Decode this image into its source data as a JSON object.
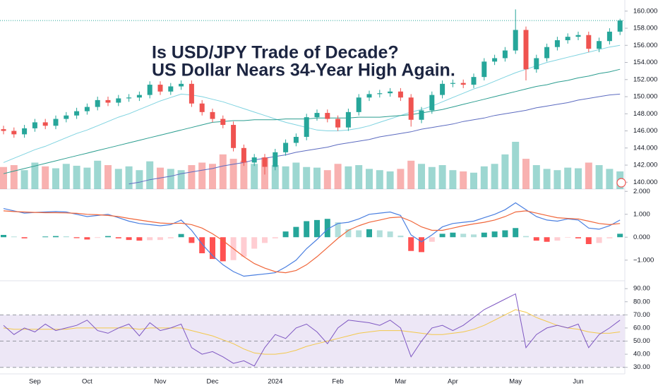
{
  "chart_data": [
    {
      "type": "candlestick",
      "annotations": [
        "Is USD/JPY Trade of Decade?",
        "US Dollar Nears 34-Year High Again."
      ],
      "categories": [
        null,
        null,
        null,
        "Sep",
        null,
        null,
        null,
        null,
        "Oct",
        null,
        null,
        null,
        null,
        null,
        null,
        "Nov",
        null,
        null,
        null,
        null,
        "Dec",
        null,
        null,
        null,
        null,
        null,
        "2024",
        null,
        null,
        null,
        null,
        null,
        "Feb",
        null,
        null,
        null,
        null,
        null,
        "Mar",
        null,
        null,
        null,
        null,
        "Apr",
        null,
        null,
        null,
        null,
        null,
        "May",
        null,
        null,
        null,
        null,
        null,
        "Jun",
        null,
        null,
        null,
        null
      ],
      "open": [
        146.2,
        146.0,
        145.6,
        146.3,
        147.0,
        146.6,
        147.4,
        147.8,
        148.3,
        148.8,
        149.6,
        149.3,
        149.8,
        149.9,
        150.2,
        151.4,
        150.6,
        151.2,
        151.5,
        149.2,
        148.2,
        147.4,
        146.7,
        144.0,
        142.3,
        142.9,
        141.8,
        143.5,
        144.6,
        145.3,
        147.6,
        148.1,
        147.4,
        146.4,
        148.2,
        149.9,
        150.3,
        150.4,
        150.6,
        149.9,
        147.3,
        148.4,
        150.2,
        151.5,
        151.6,
        151.4,
        152.3,
        154.1,
        154.5,
        155.4,
        157.8,
        153.2,
        154.5,
        155.8,
        156.6,
        157.0,
        157.2,
        155.6,
        156.5,
        157.6
      ],
      "high": [
        146.6,
        146.4,
        146.7,
        147.4,
        147.4,
        147.8,
        148.2,
        148.7,
        149.2,
        150.0,
        150.0,
        150.2,
        150.3,
        150.6,
        151.8,
        151.8,
        151.6,
        151.9,
        151.9,
        149.6,
        148.6,
        147.8,
        147.1,
        144.4,
        143.3,
        143.3,
        143.9,
        145.0,
        145.7,
        148.0,
        148.5,
        148.5,
        147.8,
        148.6,
        150.3,
        150.7,
        150.8,
        151.0,
        151.0,
        150.3,
        148.8,
        150.6,
        151.9,
        152.0,
        152.0,
        152.7,
        154.5,
        154.9,
        155.8,
        160.2,
        158.2,
        154.9,
        156.2,
        157.0,
        157.4,
        157.6,
        157.6,
        156.9,
        158.0,
        159.1
      ],
      "low": [
        145.6,
        145.2,
        145.2,
        145.9,
        146.2,
        146.2,
        147.0,
        147.4,
        147.9,
        148.4,
        148.9,
        148.9,
        149.4,
        149.5,
        149.8,
        150.2,
        150.2,
        150.8,
        148.8,
        147.8,
        147.0,
        146.3,
        143.6,
        141.9,
        141.9,
        140.9,
        141.4,
        143.1,
        144.2,
        144.9,
        147.2,
        147.0,
        146.0,
        146.0,
        147.8,
        149.5,
        149.9,
        150.0,
        149.5,
        146.5,
        146.9,
        148.0,
        149.8,
        151.1,
        151.0,
        151.0,
        151.9,
        153.7,
        154.1,
        155.0,
        151.9,
        152.8,
        154.1,
        155.4,
        156.2,
        156.6,
        155.2,
        155.2,
        156.1,
        157.2
      ],
      "close": [
        146.0,
        145.6,
        146.3,
        147.0,
        146.6,
        147.4,
        147.8,
        148.3,
        148.8,
        149.6,
        149.3,
        149.8,
        149.9,
        150.2,
        151.4,
        150.6,
        151.2,
        151.5,
        149.2,
        148.2,
        147.4,
        146.7,
        144.0,
        142.3,
        142.9,
        141.8,
        143.5,
        144.6,
        145.3,
        147.6,
        148.1,
        147.4,
        146.4,
        148.2,
        149.9,
        150.3,
        150.4,
        150.6,
        149.9,
        147.3,
        148.4,
        150.2,
        151.5,
        151.6,
        151.4,
        152.3,
        154.1,
        154.5,
        155.4,
        157.8,
        153.2,
        154.5,
        155.8,
        156.6,
        157.0,
        157.2,
        155.6,
        156.5,
        157.6,
        158.9
      ],
      "volume": [
        35,
        38,
        30,
        42,
        36,
        33,
        40,
        37,
        34,
        45,
        38,
        32,
        36,
        30,
        44,
        34,
        32,
        30,
        38,
        42,
        40,
        55,
        48,
        45,
        40,
        50,
        38,
        36,
        42,
        35,
        34,
        30,
        40,
        36,
        38,
        32,
        30,
        28,
        32,
        45,
        40,
        35,
        38,
        30,
        28,
        26,
        36,
        40,
        55,
        75,
        48,
        38,
        32,
        30,
        34,
        33,
        42,
        38,
        32,
        28
      ],
      "volume_lim": [
        0,
        300
      ],
      "up_color": "#26a69a",
      "down_color": "#ef5350",
      "moving_averages": [
        {
          "color": "#7fd3e0",
          "values": [
            142.3,
            142.8,
            143.3,
            143.8,
            144.2,
            144.7,
            145.2,
            145.7,
            146.1,
            146.6,
            147.1,
            147.6,
            148.0,
            148.5,
            149.0,
            149.5,
            149.9,
            150.3,
            150.2,
            150.0,
            149.7,
            149.4,
            149.0,
            148.6,
            148.2,
            147.8,
            147.4,
            147.0,
            146.7,
            146.4,
            146.1,
            146.0,
            146.0,
            146.1,
            146.3,
            146.6,
            147.0,
            147.4,
            147.8,
            148.2,
            148.5,
            148.9,
            149.4,
            149.9,
            150.4,
            150.9,
            151.3,
            151.8,
            152.3,
            152.8,
            153.2,
            153.6,
            154.0,
            154.3,
            154.6,
            154.9,
            155.2,
            155.5,
            155.8,
            156.0
          ]
        },
        {
          "color": "#2a9d8f",
          "values": [
            141.0,
            141.3,
            141.6,
            141.9,
            142.2,
            142.5,
            142.8,
            143.1,
            143.4,
            143.7,
            144.0,
            144.3,
            144.6,
            144.9,
            145.2,
            145.5,
            145.8,
            146.1,
            146.4,
            146.7,
            147.0,
            147.1,
            147.2,
            147.2,
            147.3,
            147.3,
            147.3,
            147.4,
            147.4,
            147.4,
            147.5,
            147.5,
            147.5,
            147.5,
            147.6,
            147.6,
            147.6,
            147.7,
            147.8,
            147.9,
            148.1,
            148.3,
            148.5,
            148.8,
            149.1,
            149.4,
            149.7,
            150.0,
            150.3,
            150.6,
            150.9,
            151.2,
            151.4,
            151.7,
            151.9,
            152.2,
            152.4,
            152.7,
            152.9,
            153.2
          ]
        },
        {
          "color": "#5c6bc0",
          "values": [
            null,
            null,
            null,
            null,
            null,
            null,
            null,
            null,
            null,
            null,
            null,
            null,
            139.8,
            140.0,
            140.3,
            140.5,
            140.7,
            141.0,
            141.2,
            141.4,
            141.6,
            141.9,
            142.1,
            142.3,
            142.6,
            142.8,
            143.0,
            143.2,
            143.5,
            143.7,
            143.9,
            144.1,
            144.4,
            144.6,
            144.8,
            145.0,
            145.3,
            145.5,
            145.7,
            145.9,
            146.2,
            146.4,
            146.6,
            146.8,
            147.1,
            147.3,
            147.5,
            147.8,
            148.0,
            148.2,
            148.4,
            148.7,
            148.9,
            149.1,
            149.3,
            149.6,
            149.8,
            150.0,
            150.2,
            150.3
          ]
        }
      ],
      "ylim": [
        139.2,
        161.3
      ],
      "yticks": [
        {
          "value": 140,
          "label": "140.000"
        },
        {
          "value": 142,
          "label": "142.000"
        },
        {
          "value": 144,
          "label": "144.000"
        },
        {
          "value": 146,
          "label": "146.000"
        },
        {
          "value": 148,
          "label": "148.000"
        },
        {
          "value": 150,
          "label": "150.000"
        },
        {
          "value": 152,
          "label": "152.000"
        },
        {
          "value": 154,
          "label": "154.000"
        },
        {
          "value": 156,
          "label": "156.000"
        },
        {
          "value": 158,
          "label": "158.000"
        },
        {
          "value": 160,
          "label": "160.000"
        }
      ],
      "grid": false
    },
    {
      "type": "macd",
      "macd": {
        "color": "#4a7fe0",
        "values": [
          1.25,
          1.15,
          1.05,
          1.08,
          1.1,
          1.12,
          1.1,
          1.0,
          0.9,
          0.95,
          1.0,
          0.85,
          0.7,
          0.6,
          0.55,
          0.5,
          0.55,
          0.75,
          0.3,
          -0.3,
          -0.8,
          -1.2,
          -1.5,
          -1.7,
          -1.65,
          -1.6,
          -1.55,
          -1.3,
          -1.0,
          -0.5,
          -0.1,
          0.35,
          0.6,
          0.65,
          0.8,
          1.0,
          1.05,
          1.1,
          0.95,
          0.1,
          -0.2,
          0.1,
          0.45,
          0.6,
          0.65,
          0.7,
          0.85,
          1.0,
          1.2,
          1.5,
          1.2,
          0.9,
          0.75,
          0.7,
          0.8,
          0.75,
          0.4,
          0.35,
          0.5,
          0.75
        ]
      },
      "signal": {
        "color": "#f0663a",
        "values": [
          1.15,
          1.12,
          1.1,
          1.08,
          1.07,
          1.07,
          1.06,
          1.04,
          1.0,
          0.98,
          0.95,
          0.9,
          0.82,
          0.75,
          0.68,
          0.62,
          0.6,
          0.61,
          0.55,
          0.4,
          0.15,
          -0.15,
          -0.5,
          -0.85,
          -1.15,
          -1.35,
          -1.5,
          -1.55,
          -1.45,
          -1.2,
          -0.85,
          -0.45,
          -0.05,
          0.3,
          0.5,
          0.65,
          0.75,
          0.85,
          0.88,
          0.7,
          0.45,
          0.3,
          0.3,
          0.4,
          0.5,
          0.58,
          0.65,
          0.75,
          0.9,
          1.1,
          1.15,
          1.05,
          0.95,
          0.85,
          0.82,
          0.8,
          0.7,
          0.6,
          0.55,
          0.6
        ]
      },
      "histogram": {
        "colors": [
          "#26a69a",
          "#b2dfdb",
          "#ffcdd2",
          "#ff5252"
        ],
        "values": [
          0.1,
          0.03,
          -0.05,
          0.0,
          0.03,
          0.05,
          0.04,
          -0.04,
          -0.1,
          -0.03,
          0.05,
          -0.05,
          -0.12,
          -0.15,
          -0.13,
          -0.12,
          -0.05,
          0.14,
          -0.25,
          -0.7,
          -0.95,
          -1.05,
          -1.0,
          -0.85,
          -0.5,
          -0.25,
          -0.05,
          0.25,
          0.45,
          0.7,
          0.75,
          0.8,
          0.65,
          0.35,
          0.3,
          0.35,
          0.3,
          0.25,
          0.07,
          -0.6,
          -0.65,
          -0.2,
          0.15,
          0.2,
          0.15,
          0.12,
          0.2,
          0.25,
          0.3,
          0.4,
          0.05,
          -0.15,
          -0.2,
          -0.15,
          -0.02,
          -0.05,
          -0.3,
          -0.25,
          -0.05,
          0.15
        ]
      },
      "ylim": [
        -1.9,
        2.1
      ],
      "yticks": [
        {
          "value": -1,
          "label": "−1.000"
        },
        {
          "value": 0,
          "label": "0.000"
        },
        {
          "value": 1,
          "label": "1.000"
        },
        {
          "value": 2,
          "label": "2.000"
        }
      ]
    },
    {
      "type": "rsi",
      "rsi": {
        "color": "#7e57c2",
        "values": [
          62,
          55,
          60,
          57,
          63,
          58,
          60,
          62,
          66,
          58,
          56,
          60,
          63,
          54,
          64,
          58,
          60,
          63,
          45,
          40,
          42,
          38,
          33,
          35,
          31,
          45,
          55,
          52,
          60,
          63,
          57,
          48,
          60,
          66,
          65,
          64,
          62,
          66,
          60,
          38,
          50,
          60,
          62,
          58,
          62,
          68,
          74,
          78,
          82,
          86,
          45,
          55,
          60,
          62,
          60,
          63,
          45,
          55,
          60,
          66
        ]
      },
      "rsi_ma": {
        "color": "#f3c84b",
        "values": [
          60,
          59,
          59,
          59,
          59,
          59,
          59,
          60,
          60,
          60,
          60,
          60,
          60,
          59,
          60,
          60,
          60,
          60,
          58,
          56,
          54,
          51,
          48,
          44,
          41,
          40,
          40,
          41,
          43,
          46,
          48,
          50,
          52,
          54,
          56,
          57,
          58,
          58,
          58,
          57,
          56,
          55,
          55,
          56,
          57,
          59,
          62,
          66,
          70,
          74,
          72,
          68,
          65,
          62,
          60,
          59,
          57,
          56,
          56,
          57
        ]
      },
      "band": [
        30,
        70
      ],
      "band_color": "#ede7f6",
      "levels": [
        70,
        50,
        30
      ],
      "ylim": [
        25,
        96
      ],
      "yticks": [
        {
          "value": 30,
          "label": "30.00"
        },
        {
          "value": 40,
          "label": "40.00"
        },
        {
          "value": 50,
          "label": "50.00"
        },
        {
          "value": 60,
          "label": "60.00"
        },
        {
          "value": 70,
          "label": "70.00"
        },
        {
          "value": 80,
          "label": "80.00"
        },
        {
          "value": 90,
          "label": "90.00"
        }
      ]
    }
  ]
}
